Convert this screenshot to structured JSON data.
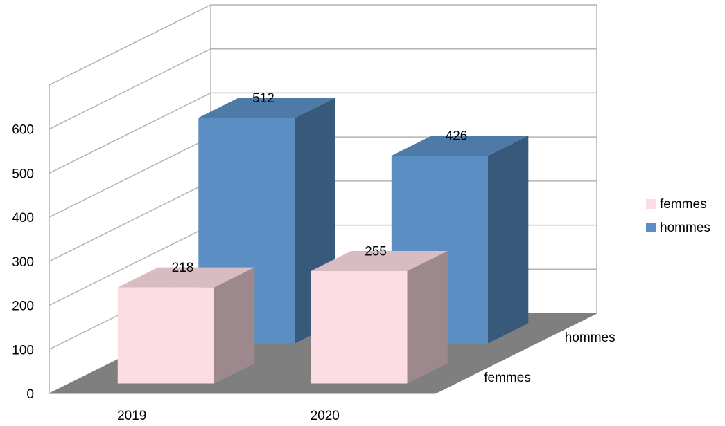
{
  "chart_data": {
    "type": "bar",
    "style": "3d-clustered-depth",
    "title": "",
    "xlabel": "",
    "ylabel": "",
    "categories": [
      "2019",
      "2020"
    ],
    "series": [
      {
        "name": "femmes",
        "values": [
          218,
          255
        ],
        "color": "#fddde4"
      },
      {
        "name": "hommes",
        "values": [
          512,
          426
        ],
        "color": "#5b8fc3"
      }
    ],
    "depth_labels": [
      "femmes",
      "hommes"
    ],
    "ylim": [
      0,
      600
    ],
    "y_ticks": [
      "0",
      "100",
      "200",
      "300",
      "400",
      "500",
      "600"
    ],
    "grid": true,
    "legend_position": "right"
  }
}
